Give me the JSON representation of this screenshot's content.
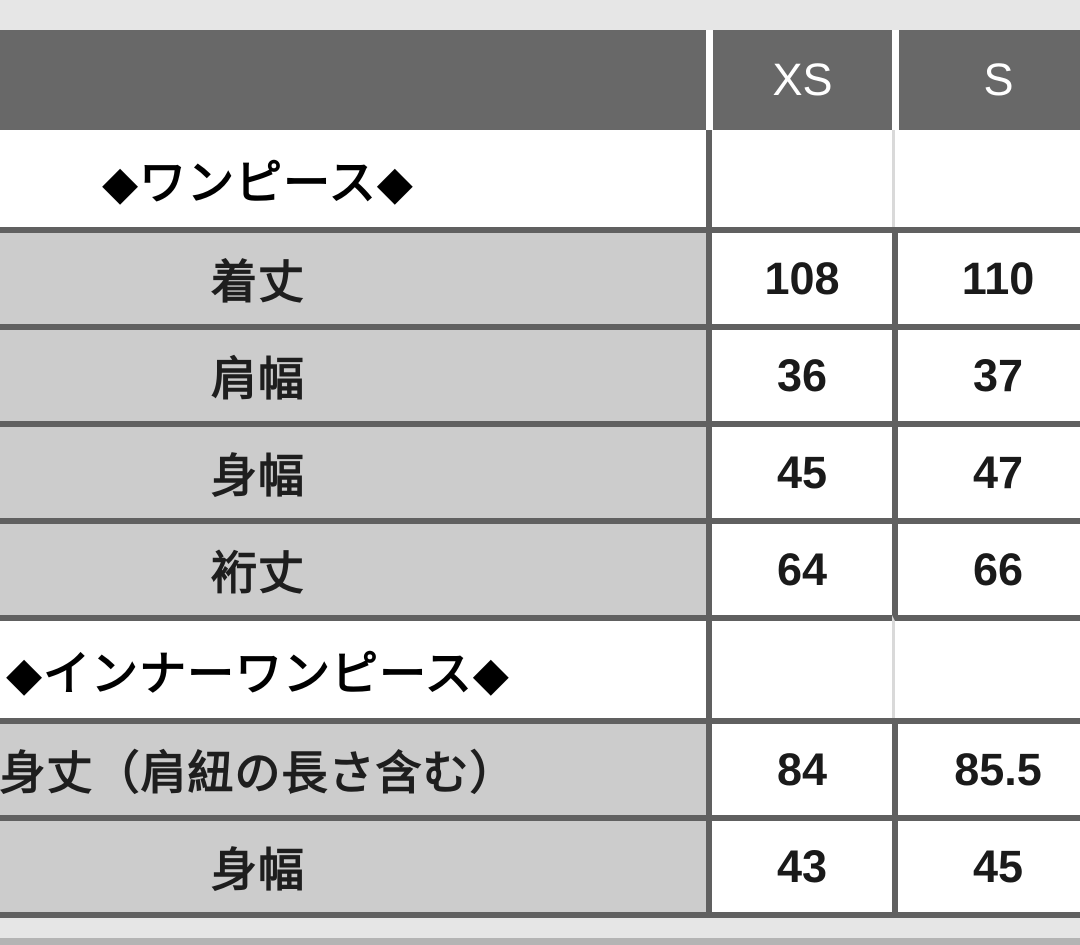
{
  "colors": {
    "header_bg": "#686868",
    "header_text": "#ffffff",
    "label_cell_bg": "#cccccc",
    "value_cell_bg": "#ffffff",
    "grid_border": "#606060",
    "page_strip_bg": "#e6e6e6",
    "bottom_band": "#b4b4b4"
  },
  "chart_data": {
    "type": "table",
    "columns": [
      "XS",
      "S"
    ],
    "sections": [
      {
        "title": "◆ワンピース◆",
        "rows": [
          {
            "label": "着丈",
            "values": [
              "108",
              "110"
            ]
          },
          {
            "label": "肩幅",
            "values": [
              "36",
              "37"
            ]
          },
          {
            "label": "身幅",
            "values": [
              "45",
              "47"
            ]
          },
          {
            "label": "裄丈",
            "values": [
              "64",
              "66"
            ]
          }
        ]
      },
      {
        "title": "◆インナーワンピース◆",
        "rows": [
          {
            "label": "身丈（肩紐の長さ含む）",
            "values": [
              "84",
              "85.5"
            ]
          },
          {
            "label": "身幅",
            "values": [
              "43",
              "45"
            ]
          }
        ]
      }
    ]
  }
}
